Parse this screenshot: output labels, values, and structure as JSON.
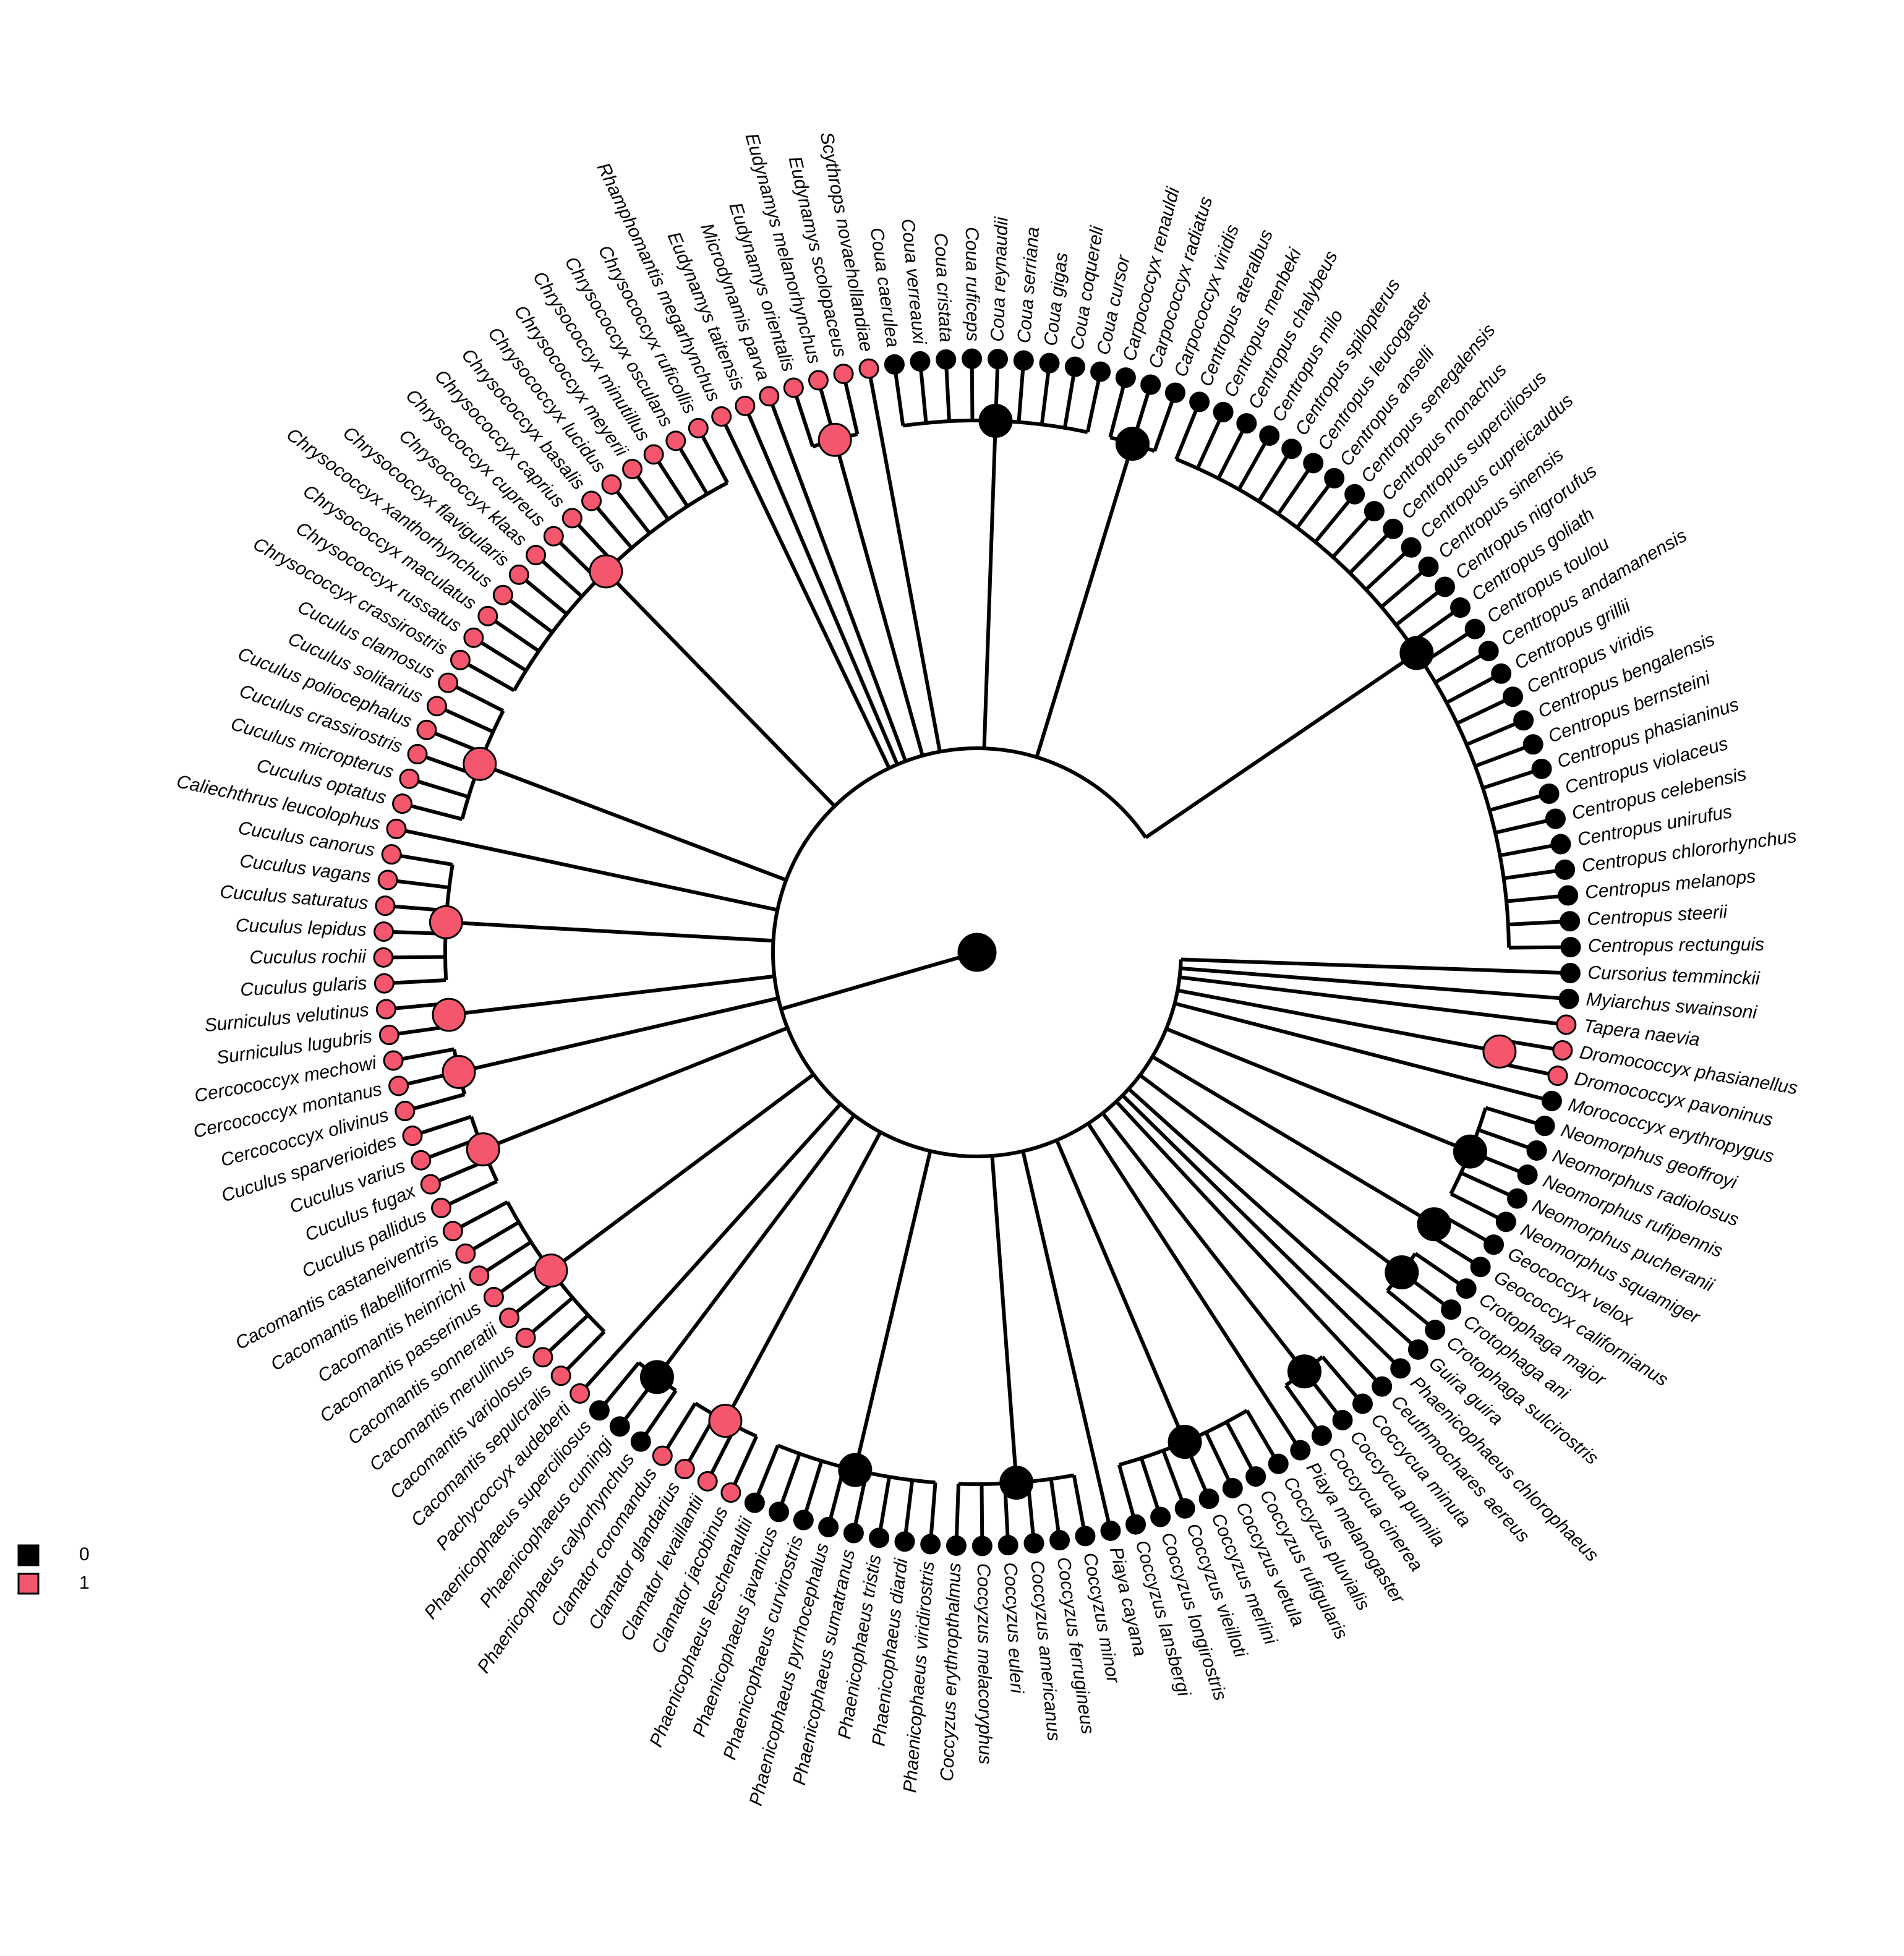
{
  "tips": [
    {
      "label": "Cursorius temminckii",
      "state": 0
    },
    {
      "label": "Myiarchus swainsoni",
      "state": 0
    },
    {
      "label": "Tapera naevia",
      "state": 1
    },
    {
      "label": "Dromococcyx phasianellus",
      "state": 1
    },
    {
      "label": "Dromococcyx pavoninus",
      "state": 1
    },
    {
      "label": "Morococcyx erythropygus",
      "state": 0
    },
    {
      "label": "Neomorphus geoffroyi",
      "state": 0
    },
    {
      "label": "Neomorphus radiolosus",
      "state": 0
    },
    {
      "label": "Neomorphus rufipennis",
      "state": 0
    },
    {
      "label": "Neomorphus pucheranii",
      "state": 0
    },
    {
      "label": "Neomorphus squamiger",
      "state": 0
    },
    {
      "label": "Geococcyx velox",
      "state": 0
    },
    {
      "label": "Geococcyx californianus",
      "state": 0
    },
    {
      "label": "Crotophaga major",
      "state": 0
    },
    {
      "label": "Crotophaga ani",
      "state": 0
    },
    {
      "label": "Crotophaga sulcirostris",
      "state": 0
    },
    {
      "label": "Guira guira",
      "state": 0
    },
    {
      "label": "Phaenicophaeus chlorophaeus",
      "state": 0
    },
    {
      "label": "Ceuthmochares aereus",
      "state": 0
    },
    {
      "label": "Coccycua minuta",
      "state": 0
    },
    {
      "label": "Coccycua pumila",
      "state": 0
    },
    {
      "label": "Coccycua cinerea",
      "state": 0
    },
    {
      "label": "Piaya melanogaster",
      "state": 0
    },
    {
      "label": "Coccyzus pluvialis",
      "state": 0
    },
    {
      "label": "Coccyzus rufigularis",
      "state": 0
    },
    {
      "label": "Coccyzus vetula",
      "state": 0
    },
    {
      "label": "Coccyzus merlini",
      "state": 0
    },
    {
      "label": "Coccyzus vieilloti",
      "state": 0
    },
    {
      "label": "Coccyzus longirostris",
      "state": 0
    },
    {
      "label": "Coccyzus lansbergi",
      "state": 0
    },
    {
      "label": "Piaya cayana",
      "state": 0
    },
    {
      "label": "Coccyzus minor",
      "state": 0
    },
    {
      "label": "Coccyzus ferrugineus",
      "state": 0
    },
    {
      "label": "Coccyzus americanus",
      "state": 0
    },
    {
      "label": "Coccyzus euleri",
      "state": 0
    },
    {
      "label": "Coccyzus melacoryphus",
      "state": 0
    },
    {
      "label": "Coccyzus erythropthalmus",
      "state": 0
    },
    {
      "label": "Phaenicophaeus viridirostris",
      "state": 0
    },
    {
      "label": "Phaenicophaeus diardi",
      "state": 0
    },
    {
      "label": "Phaenicophaeus tristis",
      "state": 0
    },
    {
      "label": "Phaenicophaeus sumatranus",
      "state": 0
    },
    {
      "label": "Phaenicophaeus pyrrhocephalus",
      "state": 0
    },
    {
      "label": "Phaenicophaeus curvirostris",
      "state": 0
    },
    {
      "label": "Phaenicophaeus javanicus",
      "state": 0
    },
    {
      "label": "Phaenicophaeus leschenaultii",
      "state": 0
    },
    {
      "label": "Clamator jacobinus",
      "state": 1
    },
    {
      "label": "Clamator levaillantii",
      "state": 1
    },
    {
      "label": "Clamator glandarius",
      "state": 1
    },
    {
      "label": "Clamator coromandus",
      "state": 1
    },
    {
      "label": "Phaenicophaeus calyorhynchus",
      "state": 0
    },
    {
      "label": "Phaenicophaeus cumingi",
      "state": 0
    },
    {
      "label": "Phaenicophaeus superciliosus",
      "state": 0
    },
    {
      "label": "Pachycoccyx audeberti",
      "state": 1
    },
    {
      "label": "Cacomantis sepulcralis",
      "state": 1
    },
    {
      "label": "Cacomantis variolosus",
      "state": 1
    },
    {
      "label": "Cacomantis merulinus",
      "state": 1
    },
    {
      "label": "Cacomantis sonneratii",
      "state": 1
    },
    {
      "label": "Cacomantis passerinus",
      "state": 1
    },
    {
      "label": "Cacomantis heinrichi",
      "state": 1
    },
    {
      "label": "Cacomantis flabelliformis",
      "state": 1
    },
    {
      "label": "Cacomantis castaneiventris",
      "state": 1
    },
    {
      "label": "Cuculus pallidus",
      "state": 1
    },
    {
      "label": "Cuculus fugax",
      "state": 1
    },
    {
      "label": "Cuculus varius",
      "state": 1
    },
    {
      "label": "Cuculus sparverioides",
      "state": 1
    },
    {
      "label": "Cercococcyx olivinus",
      "state": 1
    },
    {
      "label": "Cercococcyx montanus",
      "state": 1
    },
    {
      "label": "Cercococcyx mechowi",
      "state": 1
    },
    {
      "label": "Surniculus lugubris",
      "state": 1
    },
    {
      "label": "Surniculus velutinus",
      "state": 1
    },
    {
      "label": "Cuculus gularis",
      "state": 1
    },
    {
      "label": "Cuculus rochii",
      "state": 1
    },
    {
      "label": "Cuculus lepidus",
      "state": 1
    },
    {
      "label": "Cuculus saturatus",
      "state": 1
    },
    {
      "label": "Cuculus vagans",
      "state": 1
    },
    {
      "label": "Cuculus canorus",
      "state": 1
    },
    {
      "label": "Caliechthrus leucolophus",
      "state": 1
    },
    {
      "label": "Cuculus optatus",
      "state": 1
    },
    {
      "label": "Cuculus micropterus",
      "state": 1
    },
    {
      "label": "Cuculus crassirostris",
      "state": 1
    },
    {
      "label": "Cuculus poliocephalus",
      "state": 1
    },
    {
      "label": "Cuculus solitarius",
      "state": 1
    },
    {
      "label": "Cuculus clamosus",
      "state": 1
    },
    {
      "label": "Chrysococcyx crassirostris",
      "state": 1
    },
    {
      "label": "Chrysococcyx russatus",
      "state": 1
    },
    {
      "label": "Chrysococcyx maculatus",
      "state": 1
    },
    {
      "label": "Chrysococcyx xanthorhynchus",
      "state": 1
    },
    {
      "label": "Chrysococcyx flavigularis",
      "state": 1
    },
    {
      "label": "Chrysococcyx klaas",
      "state": 1
    },
    {
      "label": "Chrysococcyx cupreus",
      "state": 1
    },
    {
      "label": "Chrysococcyx caprius",
      "state": 1
    },
    {
      "label": "Chrysococcyx basalis",
      "state": 1
    },
    {
      "label": "Chrysococcyx lucidus",
      "state": 1
    },
    {
      "label": "Chrysococcyx meyerii",
      "state": 1
    },
    {
      "label": "Chrysococcyx minutillus",
      "state": 1
    },
    {
      "label": "Chrysococcyx osculans",
      "state": 1
    },
    {
      "label": "Chrysococcyx ruficollis",
      "state": 1
    },
    {
      "label": "Rhamphomantis megarhynchus",
      "state": 1
    },
    {
      "label": "Eudynamys taitensis",
      "state": 1
    },
    {
      "label": "Microdynamis parva",
      "state": 1
    },
    {
      "label": "Eudynamys orientalis",
      "state": 1
    },
    {
      "label": "Eudynamys melanorhynchus",
      "state": 1
    },
    {
      "label": "Eudynamys scolopaceus",
      "state": 1
    },
    {
      "label": "Scythrops novaehollandiae",
      "state": 1
    },
    {
      "label": "Coua caerulea",
      "state": 0
    },
    {
      "label": "Coua verreauxi",
      "state": 0
    },
    {
      "label": "Coua cristata",
      "state": 0
    },
    {
      "label": "Coua ruficeps",
      "state": 0
    },
    {
      "label": "Coua reynaudii",
      "state": 0
    },
    {
      "label": "Coua serriana",
      "state": 0
    },
    {
      "label": "Coua gigas",
      "state": 0
    },
    {
      "label": "Coua coquereli",
      "state": 0
    },
    {
      "label": "Coua cursor",
      "state": 0
    },
    {
      "label": "Carpococcyx renauldi",
      "state": 0
    },
    {
      "label": "Carpococcyx radiatus",
      "state": 0
    },
    {
      "label": "Carpococcyx viridis",
      "state": 0
    },
    {
      "label": "Centropus ateralbus",
      "state": 0
    },
    {
      "label": "Centropus menbeki",
      "state": 0
    },
    {
      "label": "Centropus chalybeus",
      "state": 0
    },
    {
      "label": "Centropus milo",
      "state": 0
    },
    {
      "label": "Centropus spilopterus",
      "state": 0
    },
    {
      "label": "Centropus leucogaster",
      "state": 0
    },
    {
      "label": "Centropus anselli",
      "state": 0
    },
    {
      "label": "Centropus senegalensis",
      "state": 0
    },
    {
      "label": "Centropus monachus",
      "state": 0
    },
    {
      "label": "Centropus superciliosus",
      "state": 0
    },
    {
      "label": "Centropus cupreicaudus",
      "state": 0
    },
    {
      "label": "Centropus sinensis",
      "state": 0
    },
    {
      "label": "Centropus nigrorufus",
      "state": 0
    },
    {
      "label": "Centropus goliath",
      "state": 0
    },
    {
      "label": "Centropus toulou",
      "state": 0
    },
    {
      "label": "Centropus andamanensis",
      "state": 0
    },
    {
      "label": "Centropus grillii",
      "state": 0
    },
    {
      "label": "Centropus viridis",
      "state": 0
    },
    {
      "label": "Centropus bengalensis",
      "state": 0
    },
    {
      "label": "Centropus bernsteini",
      "state": 0
    },
    {
      "label": "Centropus phasianinus",
      "state": 0
    },
    {
      "label": "Centropus violaceus",
      "state": 0
    },
    {
      "label": "Centropus celebensis",
      "state": 0
    },
    {
      "label": "Centropus unirufus",
      "state": 0
    },
    {
      "label": "Centropus chlororhynchus",
      "state": 0
    },
    {
      "label": "Centropus melanops",
      "state": 0
    },
    {
      "label": "Centropus steerii",
      "state": 0
    },
    {
      "label": "Centropus rectunguis",
      "state": 0
    }
  ],
  "legend": [
    {
      "label": "0",
      "color": "#000000"
    },
    {
      "label": "1",
      "color": "#f4566e"
    }
  ]
}
